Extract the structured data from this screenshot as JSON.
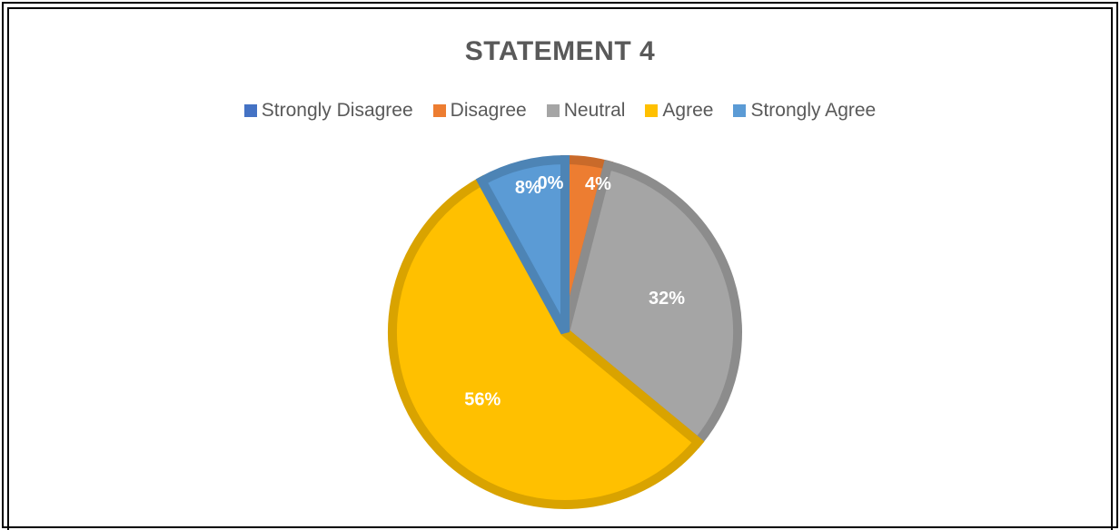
{
  "chart_data": {
    "type": "pie",
    "title": "STATEMENT 4",
    "legend_position": "top",
    "slices": [
      {
        "name": "Strongly Disagree",
        "value": 0,
        "label": "0%",
        "color": "#4472C4"
      },
      {
        "name": "Disagree",
        "value": 4,
        "label": "4%",
        "color": "#ED7D31"
      },
      {
        "name": "Neutral",
        "value": 32,
        "label": "32%",
        "color": "#A5A5A5"
      },
      {
        "name": "Agree",
        "value": 56,
        "label": "56%",
        "color": "#FFC000"
      },
      {
        "name": "Strongly Agree",
        "value": 8,
        "label": "8%",
        "color": "#5B9BD5"
      }
    ]
  }
}
